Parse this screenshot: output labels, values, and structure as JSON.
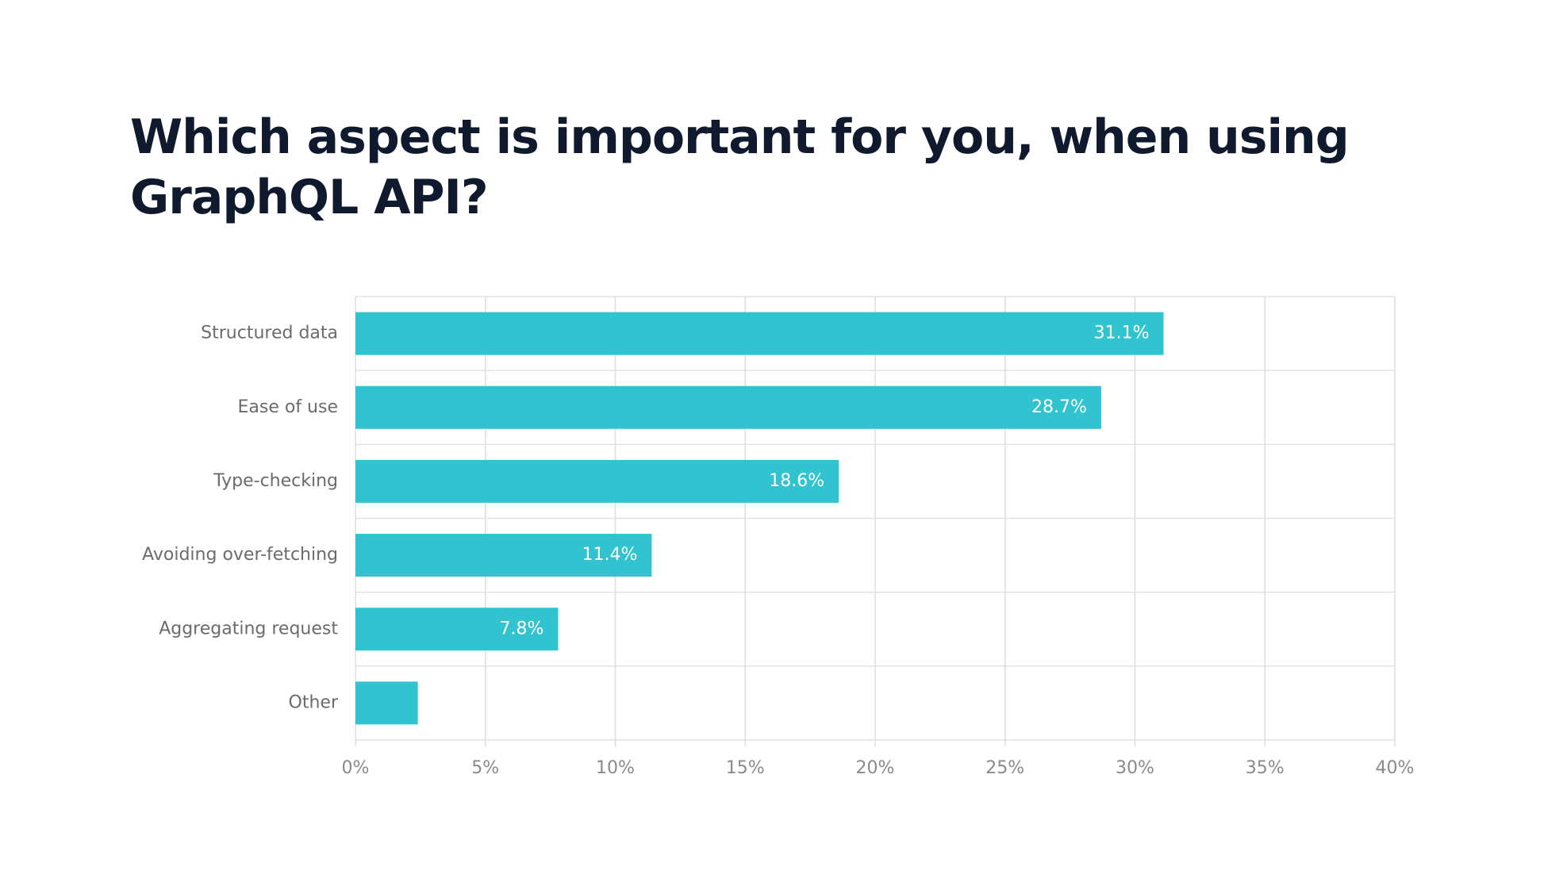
{
  "chart_data": {
    "type": "bar",
    "orientation": "horizontal",
    "title": "Which aspect is important for you, when using GraphQL API?",
    "categories": [
      "Structured data",
      "Ease of use",
      "Type-checking",
      "Avoiding over-fetching",
      "Aggregating request",
      "Other"
    ],
    "values": [
      31.1,
      28.7,
      18.6,
      11.4,
      7.8,
      2.4
    ],
    "value_labels": [
      "31.1%",
      "28.7%",
      "18.6%",
      "11.4%",
      "7.8%",
      null
    ],
    "color": "#31c4d0",
    "xlim": [
      0,
      40
    ],
    "xticks": [
      {
        "value": 0,
        "label": "0%"
      },
      {
        "value": 5,
        "label": "5%"
      },
      {
        "value": 10,
        "label": "10%"
      },
      {
        "value": 15,
        "label": "15%"
      },
      {
        "value": 20,
        "label": "20%"
      },
      {
        "value": 25,
        "label": "25%"
      },
      {
        "value": 30,
        "label": "30%"
      },
      {
        "value": 35,
        "label": "35%"
      },
      {
        "value": 40,
        "label": "40%"
      }
    ],
    "grid": true
  }
}
